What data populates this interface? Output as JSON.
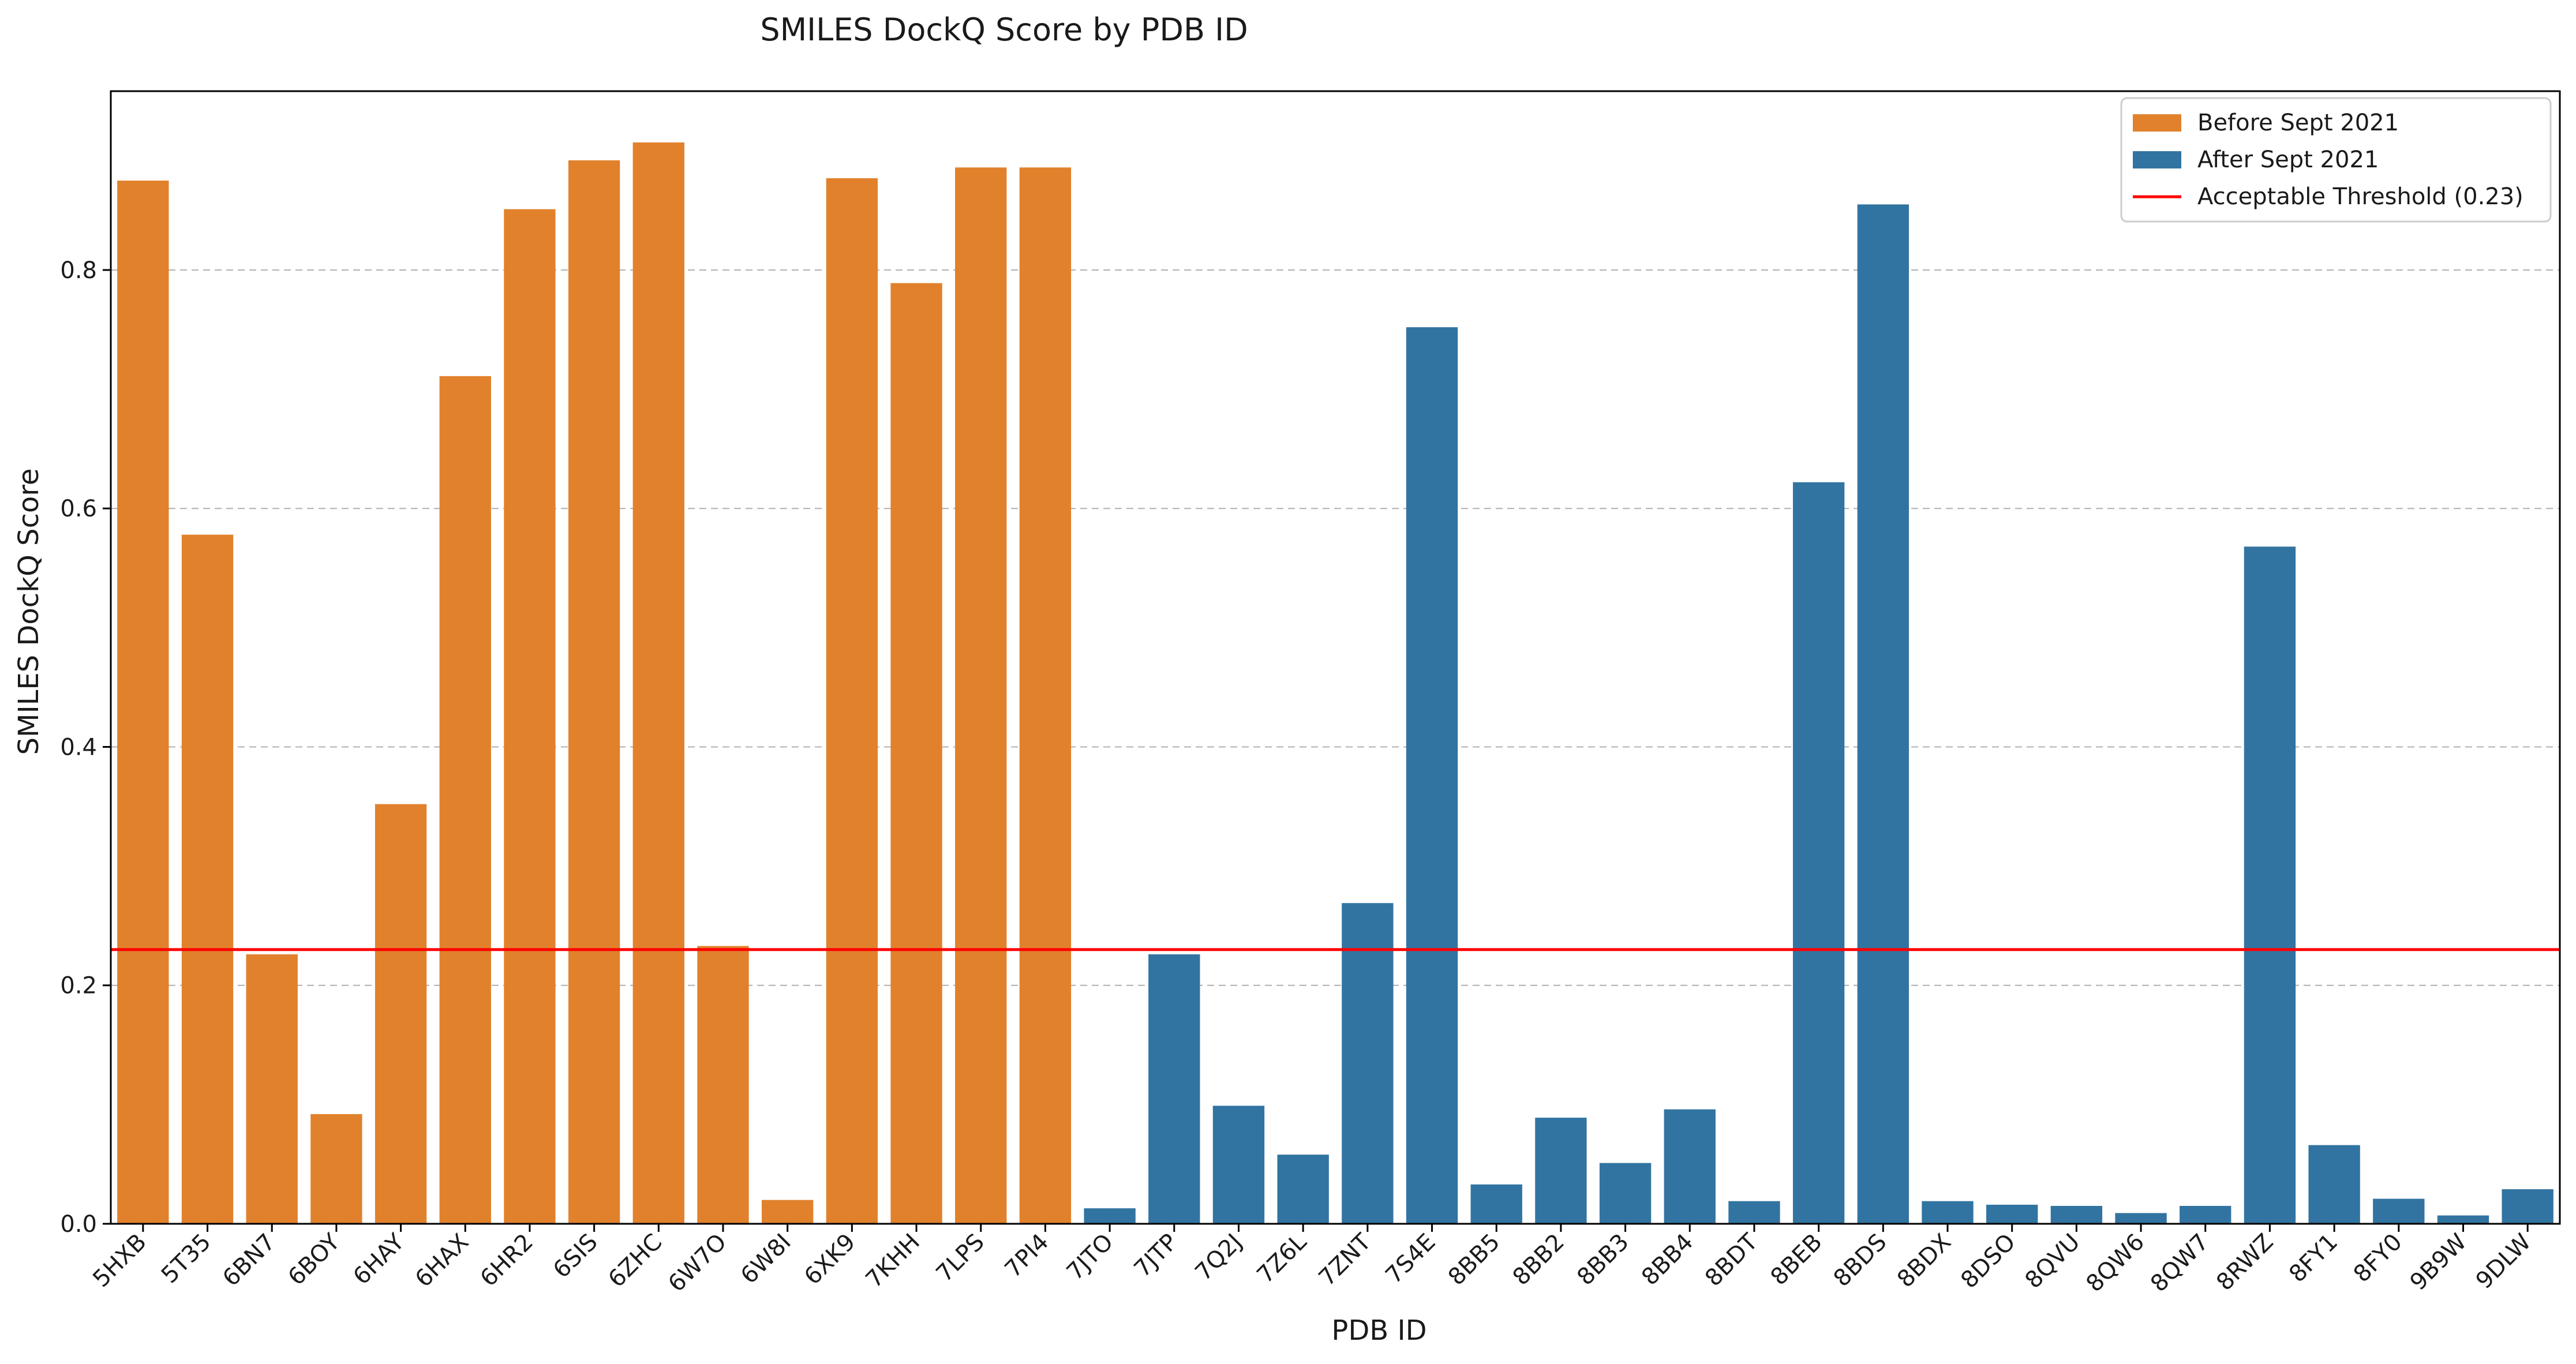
{
  "chart_data": {
    "type": "bar",
    "title": "SMILES DockQ Score by PDB ID",
    "xlabel": "PDB ID",
    "ylabel": "SMILES DockQ Score",
    "ylim": [
      0,
      0.95
    ],
    "yticks": [
      "0.0",
      "0.2",
      "0.4",
      "0.6",
      "0.8"
    ],
    "grid": "horizontal dashed",
    "legend_position": "top-right",
    "categories": [
      "5HXB",
      "5T35",
      "6BN7",
      "6BOY",
      "6HAY",
      "6HAX",
      "6HR2",
      "6SIS",
      "6ZHC",
      "6W7O",
      "6W8I",
      "6XK9",
      "7KHH",
      "7LPS",
      "7PI4",
      "7JTO",
      "7JTP",
      "7Q2J",
      "7Z6L",
      "7ZNT",
      "7S4E",
      "8BB5",
      "8BB2",
      "8BB3",
      "8BB4",
      "8BDT",
      "8BEB",
      "8BDS",
      "8BDX",
      "8DSO",
      "8QVU",
      "8QW6",
      "8QW7",
      "8RWZ",
      "8FY1",
      "8FY0",
      "9B9W",
      "9DLW"
    ],
    "values": [
      0.875,
      0.578,
      0.226,
      0.092,
      0.352,
      0.711,
      0.851,
      0.892,
      0.907,
      0.233,
      0.02,
      0.877,
      0.789,
      0.886,
      0.886,
      0.013,
      0.226,
      0.099,
      0.058,
      0.269,
      0.752,
      0.033,
      0.089,
      0.051,
      0.096,
      0.019,
      0.622,
      0.855,
      0.019,
      0.016,
      0.015,
      0.009,
      0.015,
      0.568,
      0.066,
      0.021,
      0.007,
      0.029
    ],
    "groups": [
      "before",
      "before",
      "before",
      "before",
      "before",
      "before",
      "before",
      "before",
      "before",
      "before",
      "before",
      "before",
      "before",
      "before",
      "before",
      "after",
      "after",
      "after",
      "after",
      "after",
      "after",
      "after",
      "after",
      "after",
      "after",
      "after",
      "after",
      "after",
      "after",
      "after",
      "after",
      "after",
      "after",
      "after",
      "after",
      "after",
      "after",
      "after"
    ],
    "series": [
      {
        "key": "before",
        "name": "Before Sept 2021",
        "color": "#e1812c"
      },
      {
        "key": "after",
        "name": "After Sept 2021",
        "color": "#3274a1"
      }
    ],
    "threshold": {
      "value": 0.23,
      "name": "Acceptable Threshold (0.23)",
      "color": "#ff0000"
    }
  }
}
